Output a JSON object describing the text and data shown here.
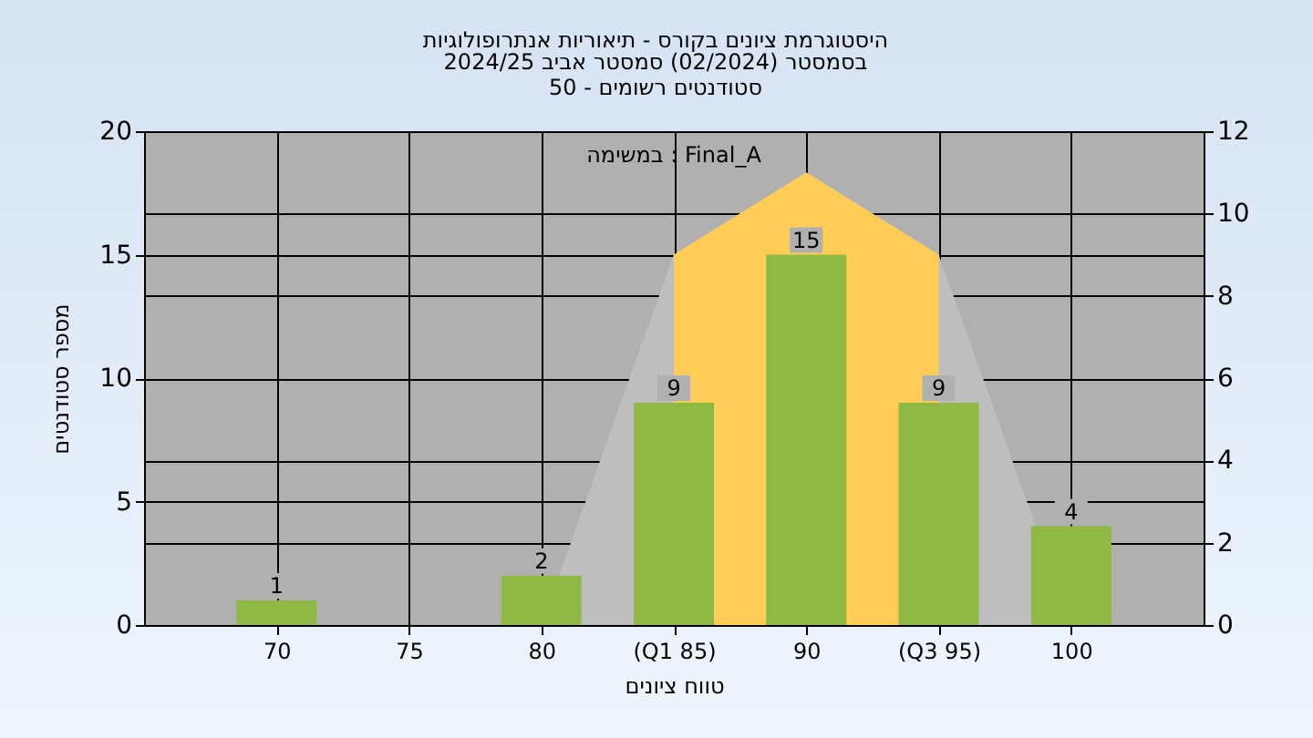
{
  "chart_data": {
    "type": "bar",
    "title": "היסטוגרמת ציונים בקורס - תיאוריות אנתרופולוגיות",
    "subtitle": [
      "בסמסטר  (02/2024)  סמסטר אביב 2024/25",
      "סטודנטים רשומים - 50"
    ],
    "xlabel": "טווח ציונים",
    "ylabel": "מספר סטודנטים",
    "annotations": [
      "במשימה : Final_A"
    ],
    "categories": [
      "70",
      "75",
      "80",
      "(Q1 85)",
      "90",
      "(Q3 95)",
      "100"
    ],
    "series": [
      {
        "type": "area",
        "axis": "y2",
        "color": "#bebebe",
        "values": [
          null,
          null,
          0,
          9,
          11,
          9,
          0
        ]
      },
      {
        "type": "area",
        "axis": "y2",
        "color": "#ffcc55",
        "values": [
          null,
          null,
          null,
          9,
          11,
          9,
          null
        ]
      },
      {
        "color": "#8fb845",
        "values": [
          1,
          0,
          2,
          9,
          15,
          9,
          4
        ],
        "value_labels": [
          "1",
          null,
          "2",
          "9",
          "15",
          "9",
          "4"
        ]
      }
    ],
    "ylim": [
      0,
      20
    ],
    "yticks": [
      0,
      5,
      10,
      15,
      20
    ],
    "y2lim": [
      0,
      12
    ],
    "y2ticks": [
      0,
      2,
      4,
      6,
      8,
      10,
      12
    ],
    "grid": true
  }
}
